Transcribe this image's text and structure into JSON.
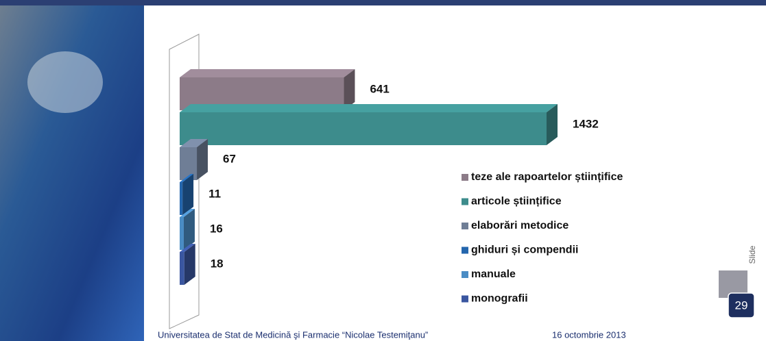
{
  "chart_data": {
    "type": "bar",
    "orientation": "horizontal",
    "categories": [
      "teze ale rapoartelor științifice",
      "articole științifice",
      "elaborări metodice",
      "ghiduri și compendii",
      "manuale",
      "monografii"
    ],
    "values": [
      641,
      1432,
      67,
      11,
      16,
      18
    ],
    "colors": [
      "#8c7b88",
      "#3d8c8c",
      "#6f7e96",
      "#2466ad",
      "#4a8cc4",
      "#3a56a0"
    ],
    "legend": "right"
  },
  "footer": {
    "institution": "Universitatea de Stat de Medicină şi Farmacie “Nicolae Testemiţanu”",
    "date": "16 octombrie 2013"
  },
  "slide": {
    "label": "Slide",
    "number": 29
  }
}
